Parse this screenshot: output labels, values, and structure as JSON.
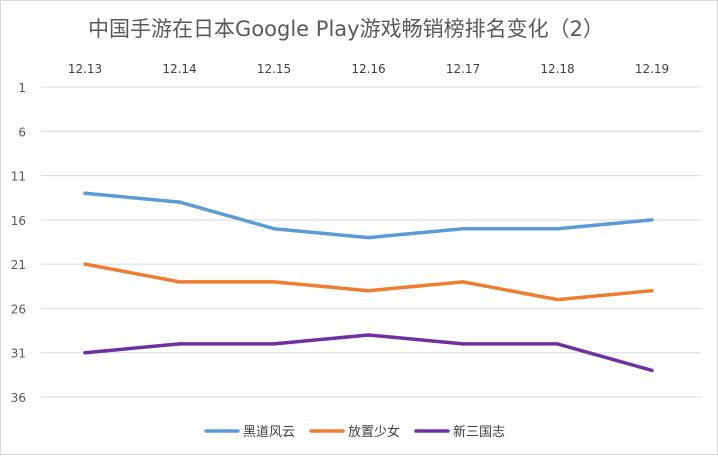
{
  "chart_data": {
    "type": "line",
    "title": "中国手游在日本Google Play游戏畅销榜排名变化（2）",
    "categories": [
      "12.13",
      "12.14",
      "12.15",
      "12.16",
      "12.17",
      "12.18",
      "12.19"
    ],
    "series": [
      {
        "name": "黑道风云",
        "color": "#5b9bd5",
        "values": [
          13,
          14,
          17,
          18,
          17,
          17,
          16
        ]
      },
      {
        "name": "放置少女",
        "color": "#ed7d31",
        "values": [
          21,
          23,
          23,
          24,
          23,
          25,
          24
        ]
      },
      {
        "name": "新三国志",
        "color": "#7030a0",
        "values": [
          31,
          30,
          30,
          29,
          30,
          30,
          33
        ]
      }
    ],
    "y_axis": {
      "reversed": true,
      "ylim": [
        1,
        36
      ],
      "ticks": [
        1,
        6,
        11,
        16,
        21,
        26,
        31,
        36
      ]
    },
    "x_axis_position": "top",
    "grid": true,
    "legend_position": "bottom"
  }
}
